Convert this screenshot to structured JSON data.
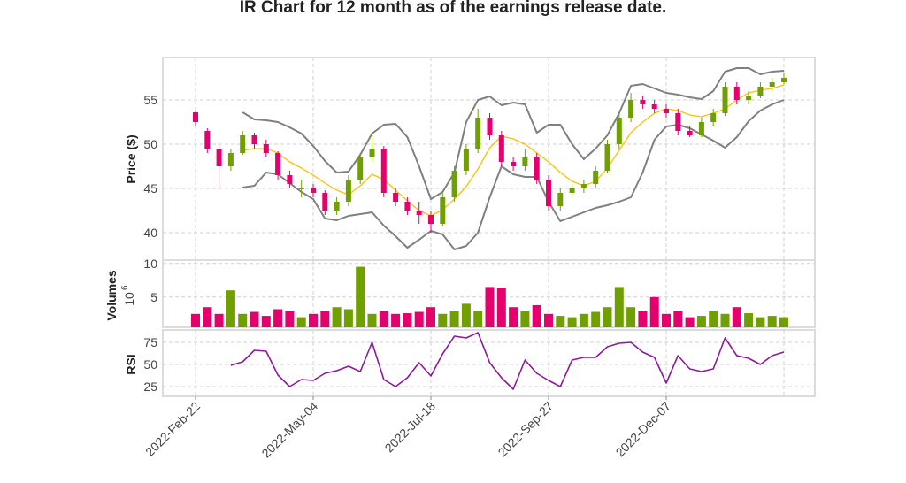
{
  "chart_data": {
    "type": "candlestick",
    "title": "IR Chart for 12 month as of the earnings release date.",
    "x_tick_labels": [
      "2022-Feb-22",
      "2022-May-04",
      "2022-Jul-18",
      "2022-Sep-27",
      "2022-Dec-07"
    ],
    "colors": {
      "up": "#6fa000",
      "down": "#e6006e",
      "sma": "#ffc000",
      "bands": "#808080",
      "rsi": "#8b1a9a"
    },
    "price_panel": {
      "ylabel": "Price ($)",
      "yticks": [
        40,
        45,
        50,
        55
      ],
      "ylim": [
        36.8,
        59.8
      ],
      "grid": true,
      "ohlc": [
        [
          53.6,
          53.8,
          52.0,
          52.5
        ],
        [
          51.5,
          51.8,
          49.0,
          49.5
        ],
        [
          49.5,
          50.0,
          45.0,
          47.5
        ],
        [
          47.5,
          49.5,
          47.0,
          49.0
        ],
        [
          49.0,
          51.5,
          48.8,
          51.0
        ],
        [
          51.0,
          51.3,
          49.5,
          50.0
        ],
        [
          50.0,
          50.5,
          48.5,
          49.0
        ],
        [
          49.0,
          49.2,
          46.0,
          46.5
        ],
        [
          46.5,
          47.0,
          45.0,
          45.5
        ],
        [
          45.0,
          46.0,
          44.0,
          45.0
        ],
        [
          45.0,
          45.5,
          44.0,
          44.5
        ],
        [
          44.5,
          44.8,
          42.0,
          42.5
        ],
        [
          42.5,
          44.0,
          42.0,
          43.5
        ],
        [
          43.5,
          46.5,
          43.0,
          46.0
        ],
        [
          46.0,
          49.0,
          45.5,
          48.5
        ],
        [
          48.5,
          51.0,
          48.0,
          49.5
        ],
        [
          49.5,
          49.8,
          44.0,
          44.5
        ],
        [
          44.5,
          45.0,
          43.0,
          43.5
        ],
        [
          43.5,
          44.0,
          42.0,
          42.5
        ],
        [
          42.5,
          43.5,
          41.0,
          42.0
        ],
        [
          42.0,
          42.5,
          40.0,
          41.0
        ],
        [
          41.0,
          44.5,
          40.8,
          44.0
        ],
        [
          44.0,
          47.5,
          43.5,
          47.0
        ],
        [
          47.0,
          50.0,
          46.5,
          49.5
        ],
        [
          49.5,
          54.0,
          49.0,
          53.0
        ],
        [
          53.0,
          53.5,
          50.5,
          51.0
        ],
        [
          51.0,
          51.5,
          47.5,
          48.0
        ],
        [
          48.0,
          48.5,
          47.0,
          47.5
        ],
        [
          47.5,
          49.5,
          47.0,
          48.5
        ],
        [
          48.5,
          49.0,
          45.5,
          46.0
        ],
        [
          46.0,
          46.5,
          42.5,
          43.0
        ],
        [
          43.0,
          45.0,
          42.5,
          44.5
        ],
        [
          44.5,
          45.5,
          44.0,
          45.0
        ],
        [
          45.0,
          46.0,
          44.5,
          45.5
        ],
        [
          45.5,
          47.5,
          45.0,
          47.0
        ],
        [
          47.0,
          50.5,
          46.8,
          50.0
        ],
        [
          50.0,
          53.5,
          49.5,
          53.0
        ],
        [
          53.0,
          55.8,
          52.5,
          55.0
        ],
        [
          55.0,
          55.5,
          54.0,
          54.5
        ],
        [
          54.5,
          55.0,
          53.5,
          54.0
        ],
        [
          54.0,
          54.5,
          53.0,
          53.5
        ],
        [
          53.5,
          54.0,
          51.0,
          51.5
        ],
        [
          51.5,
          52.0,
          50.8,
          51.0
        ],
        [
          51.0,
          53.0,
          50.8,
          52.5
        ],
        [
          52.5,
          54.0,
          52.0,
          53.5
        ],
        [
          53.5,
          57.0,
          53.2,
          56.5
        ],
        [
          56.5,
          57.0,
          54.5,
          55.0
        ],
        [
          55.0,
          56.0,
          54.5,
          55.5
        ],
        [
          55.5,
          57.0,
          55.2,
          56.5
        ],
        [
          56.5,
          57.5,
          56.0,
          57.0
        ],
        [
          57.0,
          58.0,
          56.8,
          57.5
        ]
      ],
      "sma": [
        null,
        null,
        null,
        null,
        49.3,
        49.5,
        49.5,
        49.0,
        48.0,
        47.3,
        46.5,
        45.6,
        44.8,
        44.3,
        45.3,
        46.6,
        46.0,
        44.8,
        43.6,
        42.5,
        41.9,
        42.6,
        43.8,
        45.2,
        47.2,
        49.6,
        50.9,
        50.6,
        50.0,
        49.0,
        48.0,
        46.8,
        45.8,
        45.3,
        45.8,
        47.3,
        49.3,
        51.3,
        52.5,
        53.5,
        54.0,
        53.8,
        53.3,
        53.1,
        53.5,
        54.0,
        55.0,
        55.8,
        56.1,
        56.3,
        56.7
      ],
      "upper_band": [
        null,
        null,
        null,
        null,
        53.6,
        52.8,
        52.7,
        52.5,
        51.9,
        51.2,
        49.8,
        48.1,
        46.8,
        46.9,
        48.8,
        51.2,
        52.2,
        52.3,
        50.8,
        47.5,
        43.8,
        44.6,
        46.8,
        52.5,
        55.0,
        55.4,
        54.4,
        54.7,
        54.5,
        51.3,
        52.2,
        52.2,
        50.0,
        48.3,
        49.5,
        51.0,
        53.5,
        56.6,
        56.8,
        56.3,
        55.8,
        55.6,
        55.3,
        55.1,
        56.0,
        58.2,
        58.6,
        58.6,
        57.9,
        58.2,
        58.3
      ],
      "lower_band": [
        null,
        null,
        null,
        null,
        45.1,
        45.3,
        46.8,
        46.6,
        45.6,
        44.6,
        43.8,
        41.6,
        41.4,
        41.9,
        42.1,
        42.3,
        40.8,
        39.6,
        38.3,
        39.2,
        40.2,
        39.8,
        38.1,
        38.5,
        40.0,
        44.0,
        47.5,
        46.6,
        46.3,
        46.3,
        43.5,
        41.3,
        41.8,
        42.3,
        42.8,
        43.1,
        43.5,
        44.0,
        46.8,
        50.5,
        52.0,
        52.2,
        51.8,
        51.1,
        50.4,
        49.6,
        50.8,
        52.6,
        53.8,
        54.5,
        55.0
      ]
    },
    "volume_panel": {
      "ylabel": "Volumes",
      "unit_label": "10",
      "unit_exp": "6",
      "yticks": [
        5,
        10
      ],
      "ylim": [
        0.5,
        10.5
      ],
      "values": [
        2.5,
        3.5,
        2.5,
        6.0,
        2.5,
        2.8,
        2.2,
        3.2,
        3.0,
        2.0,
        2.5,
        3.0,
        3.5,
        3.2,
        9.5,
        2.5,
        3.0,
        2.5,
        2.6,
        2.8,
        3.5,
        2.5,
        3.0,
        4.0,
        3.0,
        6.5,
        6.3,
        3.5,
        3.0,
        3.8,
        2.5,
        2.2,
        2.0,
        2.5,
        2.8,
        3.5,
        6.5,
        3.5,
        3.0,
        5.0,
        2.5,
        3.0,
        2.0,
        2.2,
        3.0,
        2.5,
        3.5,
        2.6,
        2.0,
        2.2,
        2.0
      ]
    },
    "rsi_panel": {
      "ylabel": "RSI",
      "yticks": [
        25,
        50,
        75
      ],
      "ylim": [
        14,
        89
      ],
      "values": [
        null,
        null,
        null,
        49,
        53,
        66,
        65,
        38,
        25,
        33,
        32,
        40,
        43,
        48,
        42,
        75,
        33,
        25,
        35,
        52,
        37,
        62,
        82,
        80,
        86,
        52,
        35,
        22,
        55,
        40,
        32,
        25,
        55,
        58,
        58,
        70,
        74,
        75,
        64,
        58,
        29,
        60,
        45,
        42,
        45,
        80,
        60,
        57,
        50,
        60,
        64
      ]
    }
  }
}
